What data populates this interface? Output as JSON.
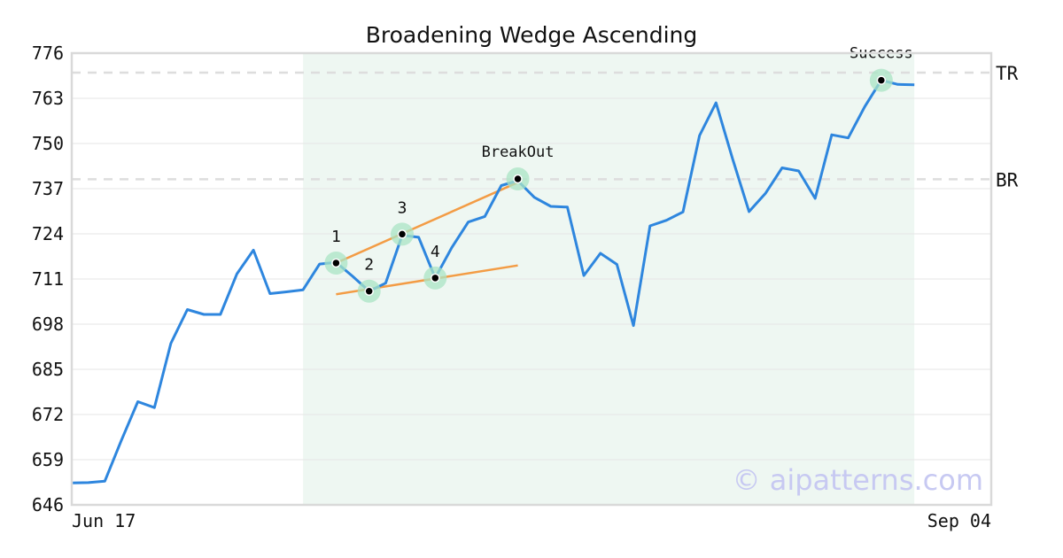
{
  "chart_data": {
    "type": "line",
    "title": "Broadening Wedge Ascending",
    "xlabel": "",
    "ylabel": "",
    "ylim": [
      646,
      776
    ],
    "y_ticks": [
      "776",
      "763",
      "750",
      "737",
      "724",
      "711",
      "698",
      "685",
      "672",
      "659",
      "646"
    ],
    "x_tick_labels": [
      "Jun 17",
      "Sep 04"
    ],
    "grid": "horizontal",
    "series": [
      {
        "color": "#2e86de",
        "values": [
          652.3,
          652.4,
          652.8,
          664.5,
          675.7,
          674.0,
          692.5,
          702.2,
          700.8,
          700.8,
          712.5,
          719.3,
          706.8,
          707.3,
          707.9,
          715.3,
          715.8,
          711.8,
          707.5,
          709.8,
          723.6,
          723.0,
          711.3,
          720.0,
          727.4,
          729.0,
          737.9,
          739.3,
          734.5,
          731.9,
          731.7,
          712.0,
          718.4,
          715.2,
          697.6,
          726.3,
          727.9,
          730.3,
          752.3,
          761.7,
          745.6,
          730.4,
          735.7,
          743.0,
          742.1,
          734.2,
          752.5,
          751.6,
          760.6,
          768.2,
          767.0,
          766.9
        ]
      }
    ],
    "highlight_region": {
      "start_index": 14,
      "end_index": 51,
      "color": "#eef7f2"
    },
    "levels": [
      {
        "label": "TR",
        "value": 770.4
      },
      {
        "label": "BR",
        "value": 739.7
      }
    ],
    "pattern_points": [
      {
        "label": "1",
        "index": 16,
        "value": 715.6
      },
      {
        "label": "2",
        "index": 18,
        "value": 707.5
      },
      {
        "label": "3",
        "index": 20,
        "value": 723.9
      },
      {
        "label": "4",
        "index": 22,
        "value": 711.3
      }
    ],
    "events": [
      {
        "label": "BreakOut",
        "index": 27,
        "value": 739.8
      },
      {
        "label": "Success",
        "index": 49,
        "value": 768.2
      }
    ],
    "trendlines": [
      {
        "color": "#f39c45",
        "from": {
          "index": 16,
          "value": 715.6
        },
        "to": {
          "index": 27,
          "value": 738.8
        }
      },
      {
        "color": "#f39c45",
        "from": {
          "index": 16,
          "value": 706.6
        },
        "to": {
          "index": 27,
          "value": 714.9
        }
      }
    ],
    "watermark": "© aipatterns.com"
  }
}
